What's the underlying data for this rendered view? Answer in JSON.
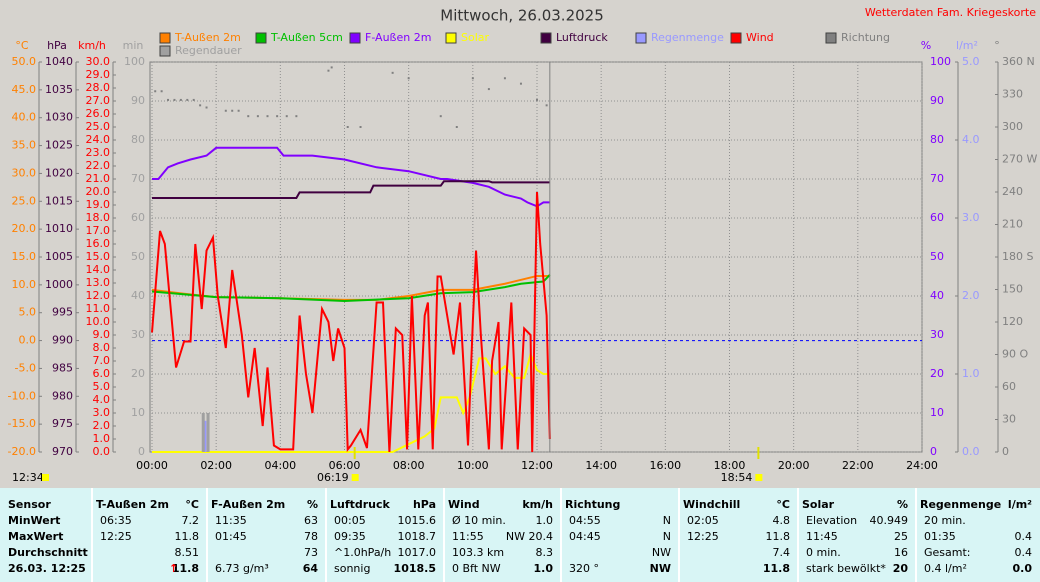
{
  "site": "Wetterdaten Fam. Kriegeskorte",
  "chart_data": {
    "type": "line",
    "title": "Mittwoch, 26.03.2025",
    "grid": true,
    "xlim": [
      0,
      24
    ],
    "xticks": [
      {
        "value": 0,
        "label": "00:00"
      },
      {
        "value": 2,
        "label": "02:00"
      },
      {
        "value": 4,
        "label": "04:00"
      },
      {
        "value": 6,
        "label": "06:00"
      },
      {
        "value": 8,
        "label": "08:00"
      },
      {
        "value": 10,
        "label": "10:00"
      },
      {
        "value": 12,
        "label": "12:00"
      },
      {
        "value": 14,
        "label": "14:00"
      },
      {
        "value": 16,
        "label": "16:00"
      },
      {
        "value": 18,
        "label": "18:00"
      },
      {
        "value": 20,
        "label": "20:00"
      },
      {
        "value": 22,
        "label": "22:00"
      },
      {
        "value": 24,
        "label": "24:00"
      }
    ],
    "axes": [
      {
        "name": "°C",
        "side": "left",
        "color": "#ff8000",
        "lim": [
          -20,
          50
        ],
        "ticks": [
          {
            "value": 50,
            "label": "50.0"
          },
          {
            "value": 45,
            "label": "45.0"
          },
          {
            "value": 40,
            "label": "40.0"
          },
          {
            "value": 35,
            "label": "35.0"
          },
          {
            "value": 30,
            "label": "30.0"
          },
          {
            "value": 25,
            "label": "25.0"
          },
          {
            "value": 20,
            "label": "20.0"
          },
          {
            "value": 15,
            "label": "15.0"
          },
          {
            "value": 10,
            "label": "10.0"
          },
          {
            "value": 5,
            "label": "5.0"
          },
          {
            "value": 0,
            "label": "0.0"
          },
          {
            "value": -5,
            "label": "-5.0"
          },
          {
            "value": -10,
            "label": "-10.0"
          },
          {
            "value": -15,
            "label": "-15.0"
          },
          {
            "value": -20,
            "label": "-20.0"
          }
        ]
      },
      {
        "name": "hPa",
        "side": "left",
        "color": "#400040",
        "lim": [
          970,
          1040
        ],
        "ticks": [
          1040,
          1035,
          1030,
          1025,
          1020,
          1015,
          1010,
          1005,
          1000,
          995,
          990,
          985,
          980,
          975,
          970
        ]
      },
      {
        "name": "km/h",
        "side": "left",
        "color": "#ff0000",
        "lim": [
          0,
          30
        ],
        "ticks": [
          {
            "value": 30,
            "label": "30.0"
          },
          {
            "value": 29,
            "label": "29.0"
          },
          {
            "value": 28,
            "label": "28.0"
          },
          {
            "value": 27,
            "label": "27.0"
          },
          {
            "value": 26,
            "label": "26.0"
          },
          {
            "value": 25,
            "label": "25.0"
          },
          {
            "value": 24,
            "label": "24.0"
          },
          {
            "value": 23,
            "label": "23.0"
          },
          {
            "value": 22,
            "label": "22.0"
          },
          {
            "value": 21,
            "label": "21.0"
          },
          {
            "value": 20,
            "label": "20.0"
          },
          {
            "value": 19,
            "label": "19.0"
          },
          {
            "value": 18,
            "label": "18.0"
          },
          {
            "value": 17,
            "label": "17.0"
          },
          {
            "value": 16,
            "label": "16.0"
          },
          {
            "value": 15,
            "label": "15.0"
          },
          {
            "value": 14,
            "label": "14.0"
          },
          {
            "value": 13,
            "label": "13.0"
          },
          {
            "value": 12,
            "label": "12.0"
          },
          {
            "value": 11,
            "label": "11.0"
          },
          {
            "value": 10,
            "label": "10.0"
          },
          {
            "value": 9,
            "label": "9.0"
          },
          {
            "value": 8,
            "label": "8.0"
          },
          {
            "value": 7,
            "label": "7.0"
          },
          {
            "value": 6,
            "label": "6.0"
          },
          {
            "value": 5,
            "label": "5.0"
          },
          {
            "value": 4,
            "label": "4.0"
          },
          {
            "value": 3,
            "label": "3.0"
          },
          {
            "value": 2,
            "label": "2.0"
          },
          {
            "value": 1,
            "label": "1.0"
          },
          {
            "value": 0,
            "label": "0.0"
          }
        ]
      },
      {
        "name": "min",
        "side": "left",
        "color": "#a0a0a0",
        "lim": [
          0,
          100
        ],
        "ticks": [
          100,
          90,
          80,
          70,
          60,
          50,
          40,
          30,
          20,
          10,
          0
        ]
      },
      {
        "name": "%",
        "side": "right",
        "color": "#8000ff",
        "lim": [
          0,
          100
        ],
        "ticks": [
          100,
          90,
          80,
          70,
          60,
          50,
          40,
          30,
          20,
          10,
          0
        ]
      },
      {
        "name": "l/m²",
        "side": "right",
        "color": "#9999ff",
        "lim": [
          0,
          5
        ],
        "ticks": [
          {
            "value": 5,
            "label": "5.0"
          },
          {
            "value": 4,
            "label": "4.0"
          },
          {
            "value": 3,
            "label": "3.0"
          },
          {
            "value": 2,
            "label": "2.0"
          },
          {
            "value": 1,
            "label": "1.0"
          },
          {
            "value": 0,
            "label": "0.0"
          }
        ]
      },
      {
        "name": "°",
        "side": "right",
        "color": "#808080",
        "lim": [
          0,
          360
        ],
        "ticks": [
          {
            "value": 360,
            "label": "360 N"
          },
          330,
          300,
          {
            "value": 270,
            "label": "270 W"
          },
          240,
          210,
          {
            "value": 180,
            "label": "180 S"
          },
          150,
          120,
          {
            "value": 90,
            "label": "90  O"
          },
          60,
          30,
          0
        ]
      }
    ],
    "reference_line": {
      "axis": 0,
      "value": 0,
      "color": "#0000ff"
    },
    "series": [
      {
        "name": "T-Außen 2m",
        "color": "#ff8000",
        "kind": "line",
        "axis": 0,
        "x": [
          0,
          1,
          2,
          4,
          6,
          7,
          8,
          9,
          10,
          11,
          12,
          12.4
        ],
        "values": [
          9.1,
          8.4,
          7.8,
          7.6,
          7.3,
          7.3,
          8.0,
          9.1,
          9.1,
          10.2,
          11.6,
          11.6
        ]
      },
      {
        "name": "T-Außen 5cm",
        "color": "#00c000",
        "kind": "line",
        "axis": 0,
        "x": [
          0,
          2,
          4,
          6,
          8,
          9,
          10,
          11,
          11.5,
          12,
          12.2,
          12.4
        ],
        "values": [
          8.8,
          7.8,
          7.6,
          7.1,
          7.6,
          8.5,
          8.7,
          9.6,
          10.2,
          10.5,
          10.6,
          11.8
        ]
      },
      {
        "name": "F-Außen 2m",
        "color": "#8000ff",
        "kind": "line",
        "axis": 4,
        "x": [
          0,
          0.2,
          0.5,
          0.8,
          1.2,
          1.7,
          2,
          3.9,
          4.1,
          5,
          6,
          7,
          8,
          9,
          9.2,
          10,
          10.5,
          11,
          11.5,
          11.7,
          12,
          12.2,
          12.4
        ],
        "values": [
          70,
          70,
          73,
          74,
          75,
          76,
          78,
          78,
          76,
          76,
          75,
          73,
          72,
          70,
          70,
          69,
          68,
          66,
          65,
          64,
          63,
          64,
          64
        ]
      },
      {
        "name": "Solar",
        "color": "#ffff00",
        "kind": "line",
        "axis": 4,
        "x": [
          0,
          7.5,
          8,
          8.5,
          8.8,
          9,
          9.5,
          9.7,
          9.9,
          10.2,
          10.4,
          10.7,
          11,
          11.3,
          11.6,
          11.8,
          12,
          12.2,
          12.4
        ],
        "values": [
          0,
          0,
          2,
          4,
          6,
          14,
          14,
          10,
          14,
          24,
          24,
          20,
          22,
          19,
          19,
          25,
          21,
          20,
          20
        ]
      },
      {
        "name": "Luftdruck",
        "color": "#400040",
        "kind": "line",
        "axis": 1,
        "x": [
          0,
          4.5,
          4.6,
          6.8,
          6.9,
          9.0,
          9.1,
          10.5,
          10.6,
          12.4
        ],
        "values": [
          1015.6,
          1015.6,
          1016.6,
          1016.6,
          1017.8,
          1017.8,
          1018.6,
          1018.6,
          1018.4,
          1018.4
        ]
      },
      {
        "name": "Regenmenge",
        "color": "#9999ff",
        "kind": "bar",
        "axis": 5,
        "x": [
          1.6
        ],
        "values": [
          0.4
        ]
      },
      {
        "name": "Wind",
        "color": "#ff0000",
        "kind": "line",
        "axis": 2,
        "x": [
          0,
          0.25,
          0.4,
          0.75,
          1.0,
          1.2,
          1.35,
          1.55,
          1.7,
          1.9,
          2.05,
          2.3,
          2.5,
          2.8,
          3.0,
          3.2,
          3.45,
          3.6,
          3.8,
          4.0,
          4.4,
          4.6,
          4.8,
          5.0,
          5.3,
          5.5,
          5.65,
          5.8,
          6.0,
          6.1,
          6.2,
          6.5,
          6.7,
          7.0,
          7.2,
          7.4,
          7.6,
          7.8,
          7.95,
          8.1,
          8.3,
          8.5,
          8.6,
          8.75,
          8.9,
          9.0,
          9.2,
          9.4,
          9.6,
          9.85,
          10.0,
          10.1,
          10.25,
          10.5,
          10.6,
          10.8,
          10.9,
          11.2,
          11.4,
          11.6,
          11.8,
          11.85,
          12.0,
          12.1,
          12.3,
          12.4
        ],
        "values": [
          9.2,
          17,
          16,
          6.5,
          8.5,
          8.5,
          16,
          11,
          15.5,
          16.5,
          12,
          8,
          14,
          9,
          4.2,
          8,
          2,
          6.5,
          0.5,
          0.2,
          0.2,
          10.5,
          6,
          3,
          11,
          10,
          7,
          9.5,
          8,
          0.2,
          0.5,
          1.7,
          0.3,
          11.5,
          11.5,
          0,
          9.5,
          9,
          0.2,
          12,
          0.2,
          10.5,
          11.5,
          0.2,
          13.5,
          13.5,
          10.5,
          7.5,
          11.5,
          0.5,
          10,
          15.5,
          9,
          0.2,
          7,
          10,
          0.2,
          11.5,
          0.2,
          9.5,
          9,
          0,
          20,
          16,
          10.5,
          1
        ]
      },
      {
        "name": "Luftdruck_dummy_skip",
        "color": "#000000",
        "kind": "none",
        "axis": 1,
        "x": [],
        "values": []
      },
      {
        "name": "Richtung",
        "color": "#808080",
        "kind": "dots",
        "axis": 6,
        "x": [
          0.1,
          0.3,
          0.5,
          0.7,
          0.9,
          1.1,
          1.3,
          1.5,
          1.7,
          2.3,
          2.5,
          2.7,
          3.0,
          3.3,
          3.6,
          3.9,
          4.2,
          4.5,
          5.5,
          5.6,
          6.1,
          6.5,
          7.5,
          8.0,
          9.0,
          9.5,
          10.0,
          10.5,
          11.0,
          11.5,
          12.0,
          12.3
        ],
        "values": [
          333,
          333,
          325,
          325,
          325,
          325,
          325,
          320,
          318,
          315,
          315,
          315,
          310,
          310,
          310,
          310,
          310,
          310,
          352,
          355,
          300,
          300,
          350,
          345,
          310,
          300,
          345,
          335,
          345,
          340,
          325,
          320
        ]
      },
      {
        "name": "Regendauer",
        "color": "#a0a0a0",
        "kind": "bar",
        "axis": 3,
        "x": [
          1.55,
          1.7
        ],
        "values": [
          10,
          10
        ]
      }
    ],
    "markers": [
      {
        "label": "06:19",
        "x": 6.317
      },
      {
        "label": "18:54",
        "x": 18.9
      }
    ],
    "now_label": "12:34",
    "now_line_x": 12.4
  },
  "summary": {
    "sensor_col": [
      "Sensor",
      "MinWert",
      "MaxWert",
      "Durchschnitt",
      "26.03. 12:25"
    ],
    "sections": [
      {
        "title": "T-Außen 2m",
        "unit": "°C",
        "trend": "↑",
        "rows": [
          [
            "06:35",
            "7.2"
          ],
          [
            "12:25",
            "11.8"
          ],
          [
            null,
            "8.51"
          ],
          [
            null,
            "11.8"
          ]
        ]
      },
      {
        "title": "F-Außen 2m",
        "unit": "%",
        "rows": [
          [
            "11:35",
            "63"
          ],
          [
            "01:45",
            "78"
          ],
          [
            null,
            "73"
          ],
          [
            "6.73 g/m³",
            "64"
          ]
        ]
      },
      {
        "title": "Luftdruck",
        "unit": "hPa",
        "rows": [
          [
            "00:05",
            "1015.6"
          ],
          [
            "09:35",
            "1018.7"
          ],
          [
            "^1.0hPa/h",
            "1017.0"
          ],
          [
            "sonnig",
            "1018.5"
          ]
        ]
      },
      {
        "title": "Wind",
        "unit": "km/h",
        "rows": [
          [
            "Ø 10 min.",
            "1.0"
          ],
          [
            "11:55",
            "NW 20.4"
          ],
          [
            "103.3 km",
            "8.3"
          ],
          [
            "0 Bft NW",
            "1.0"
          ]
        ]
      },
      {
        "title": "Richtung",
        "unit": null,
        "rows": [
          [
            "04:55",
            "N"
          ],
          [
            "04:45",
            "N"
          ],
          [
            null,
            "NW"
          ],
          [
            "320 °",
            "NW"
          ]
        ]
      },
      {
        "title": "Windchill",
        "unit": "°C",
        "rows": [
          [
            "02:05",
            "4.8"
          ],
          [
            "12:25",
            "11.8"
          ],
          [
            null,
            "7.4"
          ],
          [
            null,
            "11.8"
          ]
        ]
      },
      {
        "title": "Solar",
        "unit": "%",
        "rows": [
          [
            "Elevation",
            "40.949"
          ],
          [
            "11:45",
            "25"
          ],
          [
            "0 min.",
            "16"
          ],
          [
            "stark bewölkt*",
            "20"
          ]
        ]
      },
      {
        "title": "Regenmenge",
        "unit": "l/m²",
        "rows": [
          [
            "20 min.",
            null
          ],
          [
            "01:35",
            "0.4"
          ],
          [
            "Gesamt:",
            "0.4"
          ],
          [
            "0.4 l/m²",
            "0.0"
          ]
        ]
      }
    ]
  }
}
